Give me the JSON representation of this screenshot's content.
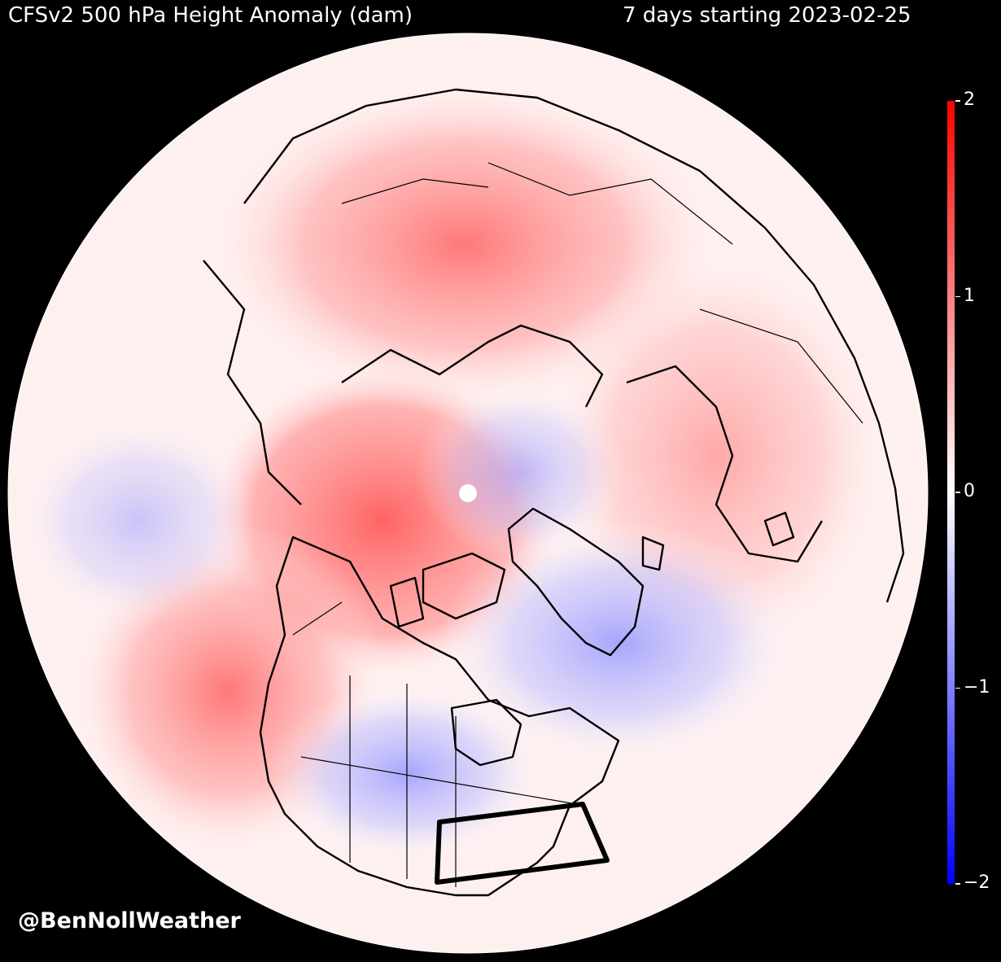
{
  "header": {
    "title": "CFSv2 500 hPa Height Anomaly (dam)",
    "period": "7 days starting 2023-02-25"
  },
  "credit": "@BenNollWeather",
  "colorbar": {
    "ticks": [
      {
        "value": 2,
        "label": "2"
      },
      {
        "value": 1,
        "label": "1"
      },
      {
        "value": 0,
        "label": "0"
      },
      {
        "value": -1,
        "label": "−1"
      },
      {
        "value": -2,
        "label": "−2"
      }
    ],
    "range": [
      -2,
      2
    ],
    "colors": {
      "high": "#ff0000",
      "mid": "#ffffff",
      "low": "#0000ff"
    }
  },
  "map": {
    "projection": "north-polar-stereographic",
    "boundary": "circular",
    "highlight_region": "eastern-united-states-box",
    "background": "#000000"
  }
}
